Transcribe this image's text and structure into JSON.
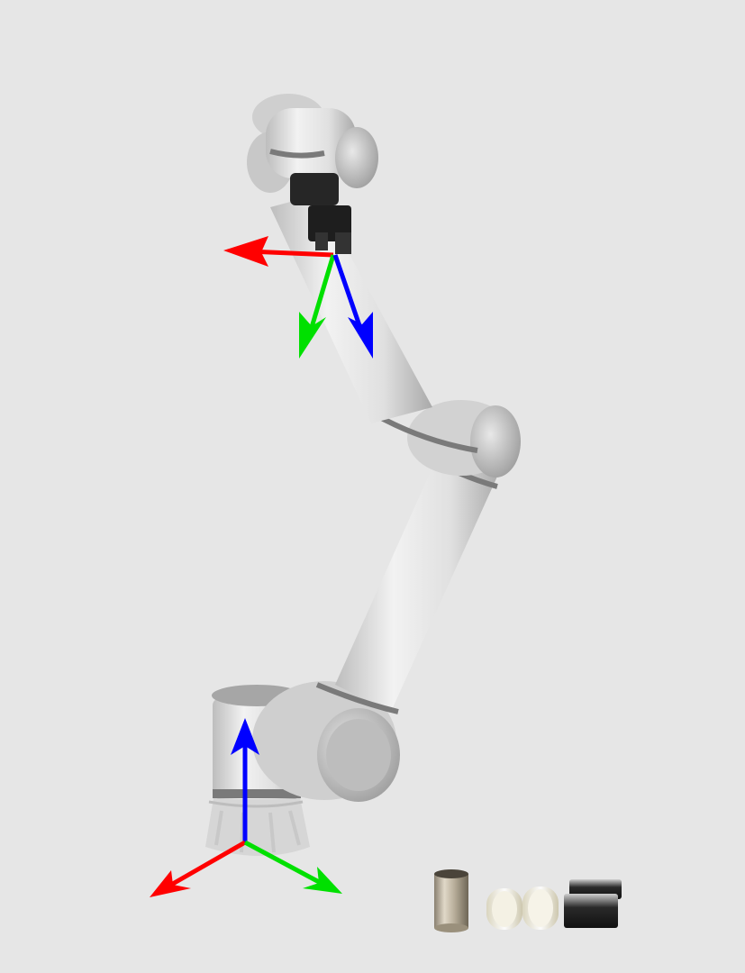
{
  "scene": {
    "subject": "robot-arm",
    "background_color": "#e6e6e6",
    "arm_color": "#d9d9d9",
    "joint_band_color": "#7a7a7a",
    "gripper_color": "#1e1e1e"
  },
  "frames": {
    "base": {
      "x_axis_color": "#ff0000",
      "y_axis_color": "#00e000",
      "z_axis_color": "#0000ff"
    },
    "end_effector": {
      "x_axis_color": "#ff0000",
      "y_axis_color": "#00e000",
      "z_axis_color": "#0000ff"
    }
  },
  "objects": [
    "metal-tube",
    "glass-tube",
    "glass-tube",
    "dark-rod",
    "dark-rod"
  ]
}
